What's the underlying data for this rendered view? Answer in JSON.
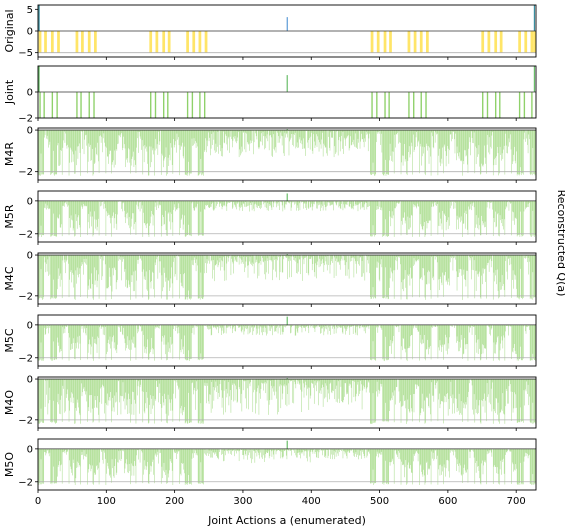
{
  "chart_data": {
    "type": "bar",
    "xlabel": "Joint Actions a (enumerated)",
    "ylabel": "Reconstructed Q(a)",
    "xlim": [
      0,
      729
    ],
    "x_ticks": [
      "0",
      "100",
      "200",
      "300",
      "400",
      "500",
      "600",
      "700"
    ],
    "x_tick_values": [
      0,
      100,
      200,
      300,
      400,
      500,
      600,
      700
    ],
    "panels": [
      {
        "name": "Original",
        "ylim": [
          -6,
          6
        ],
        "y_ticks": [
          "5",
          "0",
          "−5"
        ],
        "y_tick_values": [
          5,
          0,
          -5
        ],
        "bar_color": "#ffe14d",
        "spike_color": "#5c9bd6",
        "peak_value": 3.2,
        "edge_value": 6,
        "edge_color": "#3a8fa0",
        "min_value": -5,
        "groups": [
          [
            1,
            4
          ],
          [
            9,
            4
          ],
          [
            19,
            4
          ],
          [
            28,
            4
          ],
          [
            55,
            4
          ],
          [
            63,
            4
          ],
          [
            73,
            4
          ],
          [
            82,
            4
          ],
          [
            163,
            4
          ],
          [
            172,
            4
          ],
          [
            182,
            4
          ],
          [
            190,
            4
          ],
          [
            217,
            4
          ],
          [
            226,
            4
          ],
          [
            235,
            4
          ],
          [
            244,
            4
          ],
          [
            487,
            4
          ],
          [
            496,
            4
          ],
          [
            506,
            4
          ],
          [
            514,
            4
          ],
          [
            541,
            4
          ],
          [
            550,
            4
          ],
          [
            559,
            4
          ],
          [
            568,
            4
          ],
          [
            649,
            4
          ],
          [
            658,
            4
          ],
          [
            668,
            4
          ],
          [
            676,
            4
          ],
          [
            703,
            4
          ],
          [
            712,
            4
          ],
          [
            721,
            4
          ],
          [
            725,
            4
          ]
        ]
      },
      {
        "name": "Joint",
        "ylim": [
          -2,
          2
        ],
        "y_ticks": [
          "0",
          "−2"
        ],
        "y_tick_values": [
          0,
          -2
        ],
        "bar_color": "#8fd16a",
        "peak_value": 1.3,
        "edge_value": 2,
        "min_value": -2,
        "group_value": -2,
        "groups": [
          [
            2,
            2
          ],
          [
            8,
            2
          ],
          [
            20,
            2
          ],
          [
            27,
            2
          ],
          [
            56,
            2
          ],
          [
            62,
            2
          ],
          [
            74,
            2
          ],
          [
            81,
            2
          ],
          [
            164,
            2
          ],
          [
            171,
            2
          ],
          [
            183,
            2
          ],
          [
            189,
            2
          ],
          [
            218,
            2
          ],
          [
            225,
            2
          ],
          [
            236,
            2
          ],
          [
            243,
            2
          ],
          [
            488,
            2
          ],
          [
            495,
            2
          ],
          [
            507,
            2
          ],
          [
            513,
            2
          ],
          [
            542,
            2
          ],
          [
            549,
            2
          ],
          [
            560,
            2
          ],
          [
            567,
            2
          ],
          [
            650,
            2
          ],
          [
            657,
            2
          ],
          [
            669,
            2
          ],
          [
            675,
            2
          ],
          [
            704,
            2
          ],
          [
            711,
            2
          ],
          [
            722,
            2
          ]
        ]
      },
      {
        "name": "M4R",
        "ylim": [
          -2.4,
          0.1
        ],
        "y_ticks": [
          "0",
          "−2"
        ],
        "y_tick_values": [
          0,
          -2
        ],
        "bar_color": "#8fd16a",
        "baseline_value": -2,
        "peak_value": 0.05,
        "min_value": -2.2
      },
      {
        "name": "M5R",
        "ylim": [
          -2.5,
          0.6
        ],
        "y_ticks": [
          "0",
          "−2"
        ],
        "y_tick_values": [
          0,
          -2
        ],
        "bar_color": "#8fd16a",
        "baseline_value": -2,
        "peak_value": 0.45,
        "min_value": -2.2
      },
      {
        "name": "M4C",
        "ylim": [
          -2.4,
          0.1
        ],
        "y_ticks": [
          "0",
          "−2"
        ],
        "y_tick_values": [
          0,
          -2
        ],
        "bar_color": "#8fd16a",
        "baseline_value": -2,
        "peak_value": 0.05,
        "min_value": -2.2
      },
      {
        "name": "M5C",
        "ylim": [
          -2.5,
          0.6
        ],
        "y_ticks": [
          "0",
          "−2"
        ],
        "y_tick_values": [
          0,
          -2
        ],
        "bar_color": "#8fd16a",
        "baseline_value": -2,
        "peak_value": 0.5,
        "min_value": -2.2
      },
      {
        "name": "M4O",
        "ylim": [
          -2.4,
          0.1
        ],
        "y_ticks": [
          "0",
          "−2"
        ],
        "y_tick_values": [
          0,
          -2
        ],
        "bar_color": "#8fd16a",
        "baseline_value": -2,
        "peak_value": 0.05,
        "min_value": -2.2
      },
      {
        "name": "M5O",
        "ylim": [
          -2.5,
          0.6
        ],
        "y_ticks": [
          "0",
          "−2"
        ],
        "y_tick_values": [
          0,
          -2
        ],
        "bar_color": "#8fd16a",
        "baseline_value": -2,
        "peak_value": 0.5,
        "min_value": -2.2
      }
    ]
  }
}
